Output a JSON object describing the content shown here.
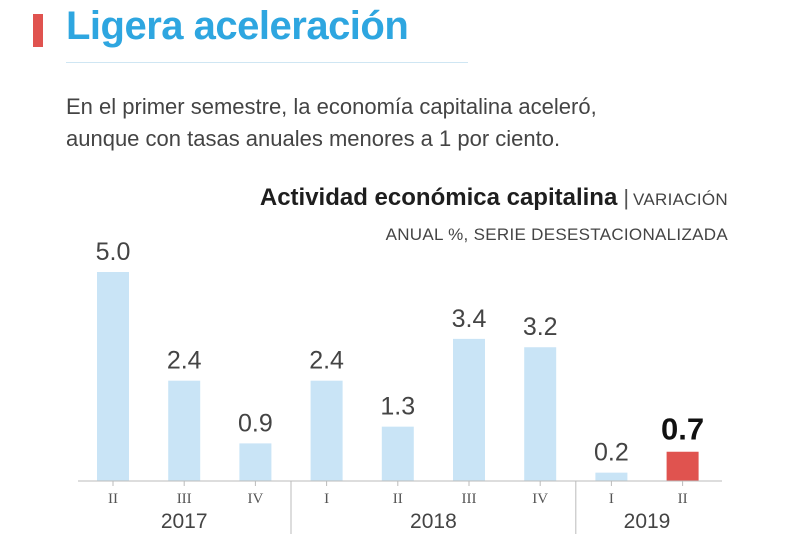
{
  "header": {
    "title": "Ligera aceleración",
    "subtitle_line1": "En el primer semestre, la economía capitalina aceleró,",
    "subtitle_line2": "aunque con tasas anuales menores a 1 por ciento.",
    "accent_color": "#e0534f",
    "title_color": "#2ea6e0"
  },
  "chart_data": {
    "type": "bar",
    "title": "Actividad económica capitalina",
    "unit_line1": "VARIACIÓN",
    "unit_line2": "ANUAL %, SERIE DESESTACIONALIZADA",
    "categories": [
      "II",
      "III",
      "IV",
      "I",
      "II",
      "III",
      "IV",
      "I",
      "II"
    ],
    "values": [
      5.0,
      2.4,
      0.9,
      2.4,
      1.3,
      3.4,
      3.2,
      0.2,
      0.7
    ],
    "value_labels": [
      "5.0",
      "2.4",
      "0.9",
      "2.4",
      "1.3",
      "3.4",
      "3.2",
      "0.2",
      "0.7"
    ],
    "highlight_index": 8,
    "groups": [
      {
        "label": "2017",
        "start": 0,
        "count": 3
      },
      {
        "label": "2018",
        "start": 3,
        "count": 4
      },
      {
        "label": "2019",
        "start": 7,
        "count": 2
      }
    ],
    "ylim": [
      0,
      5
    ],
    "grid": false,
    "colors": {
      "bar": "#c9e4f6",
      "highlight": "#e0534f",
      "axis": "#bbbbbb",
      "label": "#444444",
      "highlight_label": "#111111"
    }
  }
}
